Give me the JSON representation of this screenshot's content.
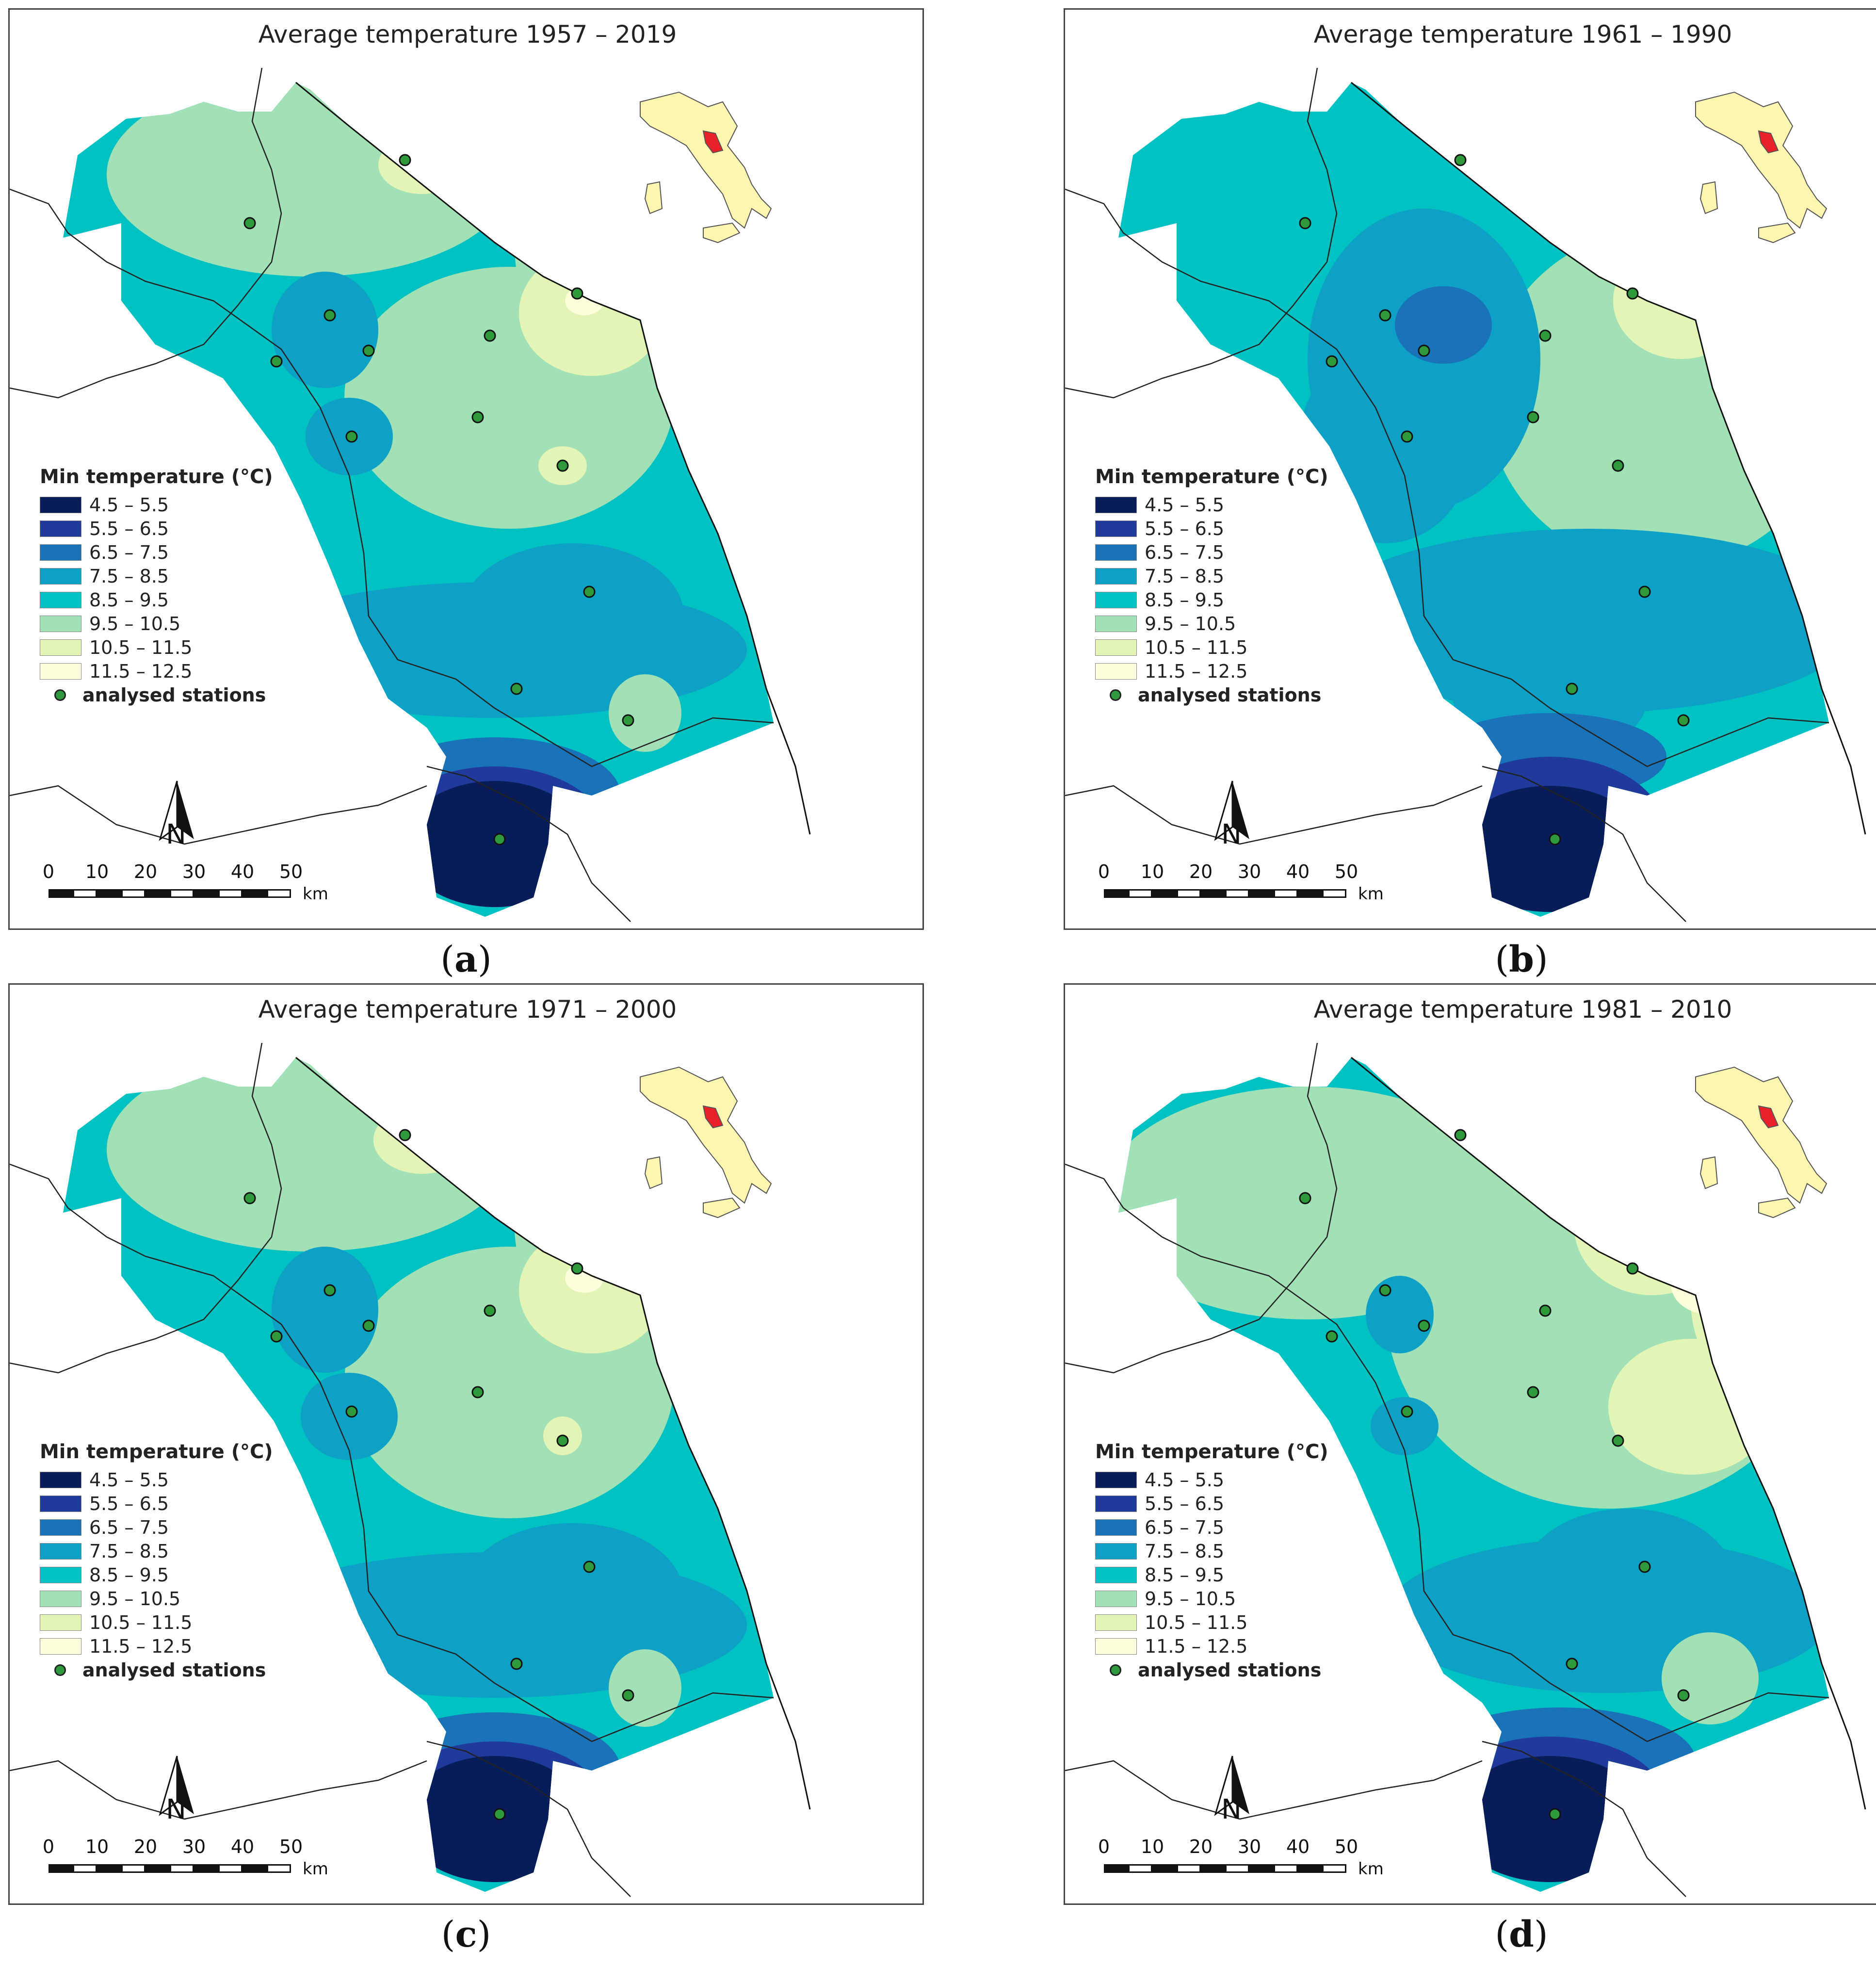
{
  "legend": {
    "title": "Min temperature (°C)",
    "classes": [
      {
        "label": "4.5 – 5.5",
        "color": "#081d58"
      },
      {
        "label": "5.5 – 6.5",
        "color": "#1f3a9b"
      },
      {
        "label": "6.5 – 7.5",
        "color": "#1a72b8"
      },
      {
        "label": "7.5 – 8.5",
        "color": "#0fa0c6"
      },
      {
        "label": "8.5 – 9.5",
        "color": "#00c2c2"
      },
      {
        "label": "9.5 – 10.5",
        "color": "#a2e0b6"
      },
      {
        "label": "10.5 – 11.5",
        "color": "#e3f5b6"
      },
      {
        "label": "11.5 – 12.5",
        "color": "#fdfedb"
      }
    ],
    "stations_label": "analysed stations"
  },
  "north_label": "N",
  "scale": {
    "ticks": [
      "0",
      "10",
      "20",
      "30",
      "40",
      "50"
    ],
    "unit": "km"
  },
  "panels": [
    {
      "title": "Average temperature 1957 – 2019",
      "letter": "a",
      "variant": 0
    },
    {
      "title": "Average temperature 1961 – 1990",
      "letter": "b",
      "variant": 1
    },
    {
      "title": "Average temperature 1971 – 2000",
      "letter": "c",
      "variant": 2
    },
    {
      "title": "Average temperature 1981 – 2010",
      "letter": "d",
      "variant": 3
    }
  ],
  "colors": {
    "station_fill": "#2e9a3c",
    "inset_land": "#fdf5b0",
    "inset_highlight": "#e8202a"
  }
}
